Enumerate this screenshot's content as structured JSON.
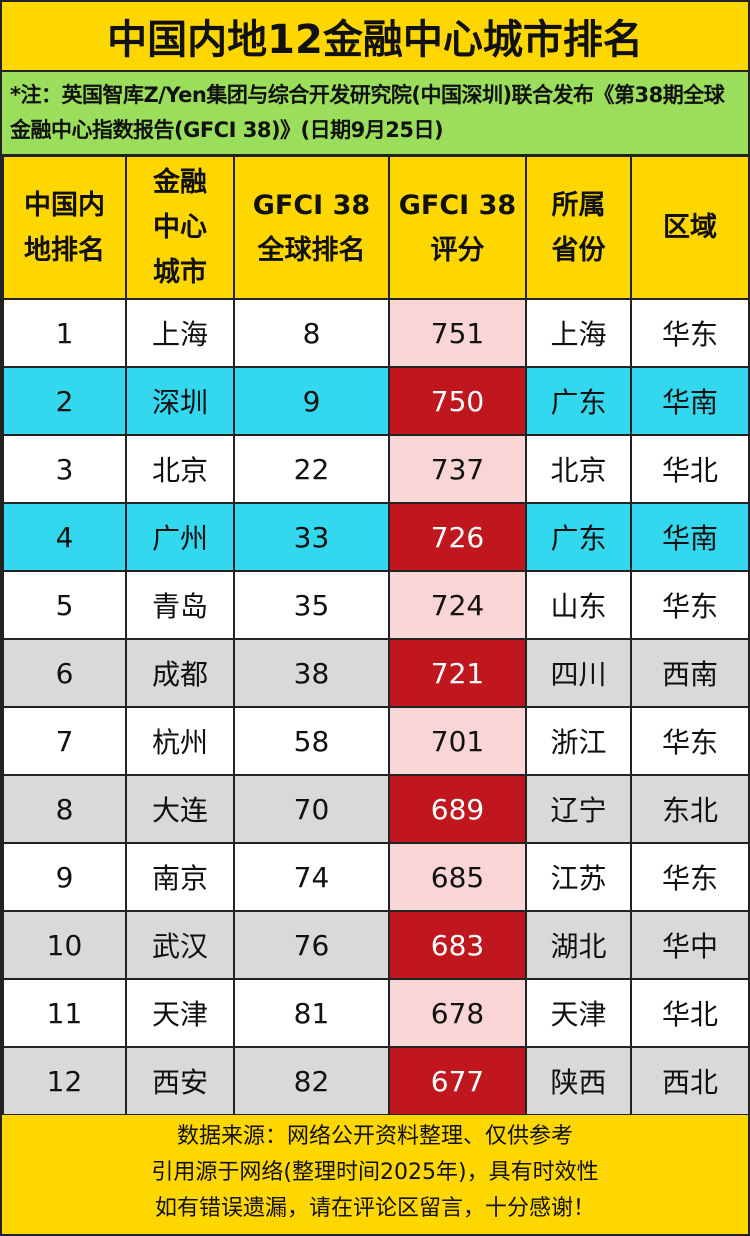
{
  "title": "中国内地12金融中心城市排名",
  "note": "*注：英国智库Z/Yen集团与综合开发研究院(中国深圳)联合发布《第38期全球金融中心指数报告(GFCI 38)》(日期9月25日)",
  "headers": [
    "中国内地排名",
    "金融中心城市",
    "GFCI 38 全球排名",
    "GFCI 38 评分",
    "所属省份",
    "区域"
  ],
  "rows": [
    [
      "1",
      "上海",
      "8",
      "751",
      "上海",
      "华东"
    ],
    [
      "2",
      "深圳",
      "9",
      "750",
      "广东",
      "华南"
    ],
    [
      "3",
      "北京",
      "22",
      "737",
      "北京",
      "华北"
    ],
    [
      "4",
      "广州",
      "33",
      "726",
      "广东",
      "华南"
    ],
    [
      "5",
      "青岛",
      "35",
      "724",
      "山东",
      "华东"
    ],
    [
      "6",
      "成都",
      "38",
      "721",
      "四川",
      "西南"
    ],
    [
      "7",
      "杭州",
      "58",
      "701",
      "浙江",
      "华东"
    ],
    [
      "8",
      "大连",
      "70",
      "689",
      "辽宁",
      "东北"
    ],
    [
      "9",
      "南京",
      "74",
      "685",
      "江苏",
      "华东"
    ],
    [
      "10",
      "武汉",
      "76",
      "683",
      "湖北",
      "华中"
    ],
    [
      "11",
      "天津",
      "81",
      "678",
      "天津",
      "华北"
    ],
    [
      "12",
      "西安",
      "82",
      "677",
      "陕西",
      "西北"
    ]
  ],
  "footer": [
    "数据来源：网络公开资料整理、仅供参考",
    "引用源于网络(整理时间2025年)，具有时效性",
    "如有错误遗漏，请在评论区留言，十分感谢！"
  ],
  "colors": {
    "title_bg": "#FED700",
    "note_bg": "#9BDE5C",
    "cyan_row": "#33D7EE",
    "gray_row": "#D9D9DC",
    "score_light": "#FAD5D5",
    "score_red": "#C0161E"
  }
}
